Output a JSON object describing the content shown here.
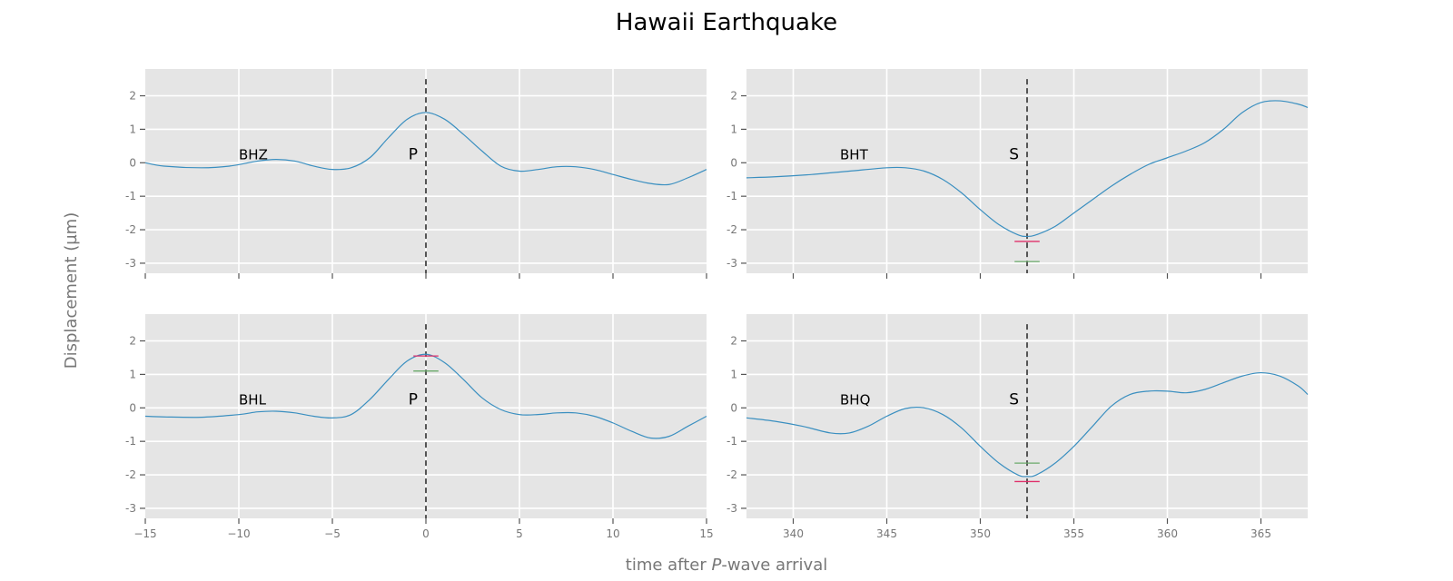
{
  "chart_data": {
    "title": "Hawaii Earthquake",
    "xlabel_pre": "time after ",
    "xlabel_italic": "P",
    "xlabel_post": "-wave arrival",
    "ylabel": "Displacement (µm)",
    "grid": true,
    "colors": {
      "background": "#e5e5e5",
      "grid": "#ffffff",
      "trace": "#3a8fc0",
      "marker": "#555555",
      "red": "#e0306a",
      "green": "#6aaa6a"
    },
    "shared_y": {
      "ylim": [
        -3.3,
        2.8
      ],
      "yticks": [
        2,
        1,
        0,
        -1,
        -2,
        -3
      ],
      "ytick_labels": [
        "2",
        "1",
        "0",
        "-1",
        "-2",
        "-3"
      ]
    },
    "panels": [
      {
        "type": "line",
        "trace": "BHZ",
        "phase": "P",
        "xlim": [
          -15,
          15
        ],
        "xticks": [
          -15,
          -10,
          -5,
          0,
          5,
          10,
          15
        ],
        "xtick_labels": [
          "−15",
          "−10",
          "−5",
          "0",
          "5",
          "10",
          "15"
        ],
        "show_xtick_labels": false,
        "phase_time": 0,
        "red_level": null,
        "green_level": null,
        "x": [
          -15,
          -14,
          -12,
          -10.5,
          -9,
          -8,
          -7,
          -6,
          -5,
          -4,
          -3,
          -2,
          -1,
          0,
          1,
          2,
          3,
          4,
          5,
          6,
          7,
          8,
          9,
          10,
          11,
          12,
          13,
          14,
          15
        ],
        "y": [
          0.0,
          -0.1,
          -0.15,
          -0.1,
          0.05,
          0.1,
          0.05,
          -0.1,
          -0.2,
          -0.15,
          0.15,
          0.75,
          1.3,
          1.5,
          1.3,
          0.85,
          0.35,
          -0.1,
          -0.25,
          -0.2,
          -0.12,
          -0.12,
          -0.2,
          -0.35,
          -0.5,
          -0.62,
          -0.65,
          -0.45,
          -0.2
        ]
      },
      {
        "type": "line",
        "trace": "BHT",
        "phase": "S",
        "xlim": [
          337.5,
          367.5
        ],
        "xticks": [
          340,
          345,
          350,
          355,
          360,
          365
        ],
        "xtick_labels": [
          "340",
          "345",
          "350",
          "355",
          "360",
          "365"
        ],
        "show_xtick_labels": false,
        "phase_time": 352.5,
        "red_level": -2.35,
        "green_level": -2.95,
        "x": [
          337.5,
          339,
          341,
          343,
          345,
          346,
          347,
          348,
          349,
          350,
          351,
          352,
          352.5,
          353,
          354,
          355,
          356,
          357,
          358,
          359,
          360,
          361,
          362,
          363,
          364,
          365,
          366,
          367,
          367.5
        ],
        "y": [
          -0.45,
          -0.42,
          -0.35,
          -0.25,
          -0.15,
          -0.15,
          -0.25,
          -0.5,
          -0.9,
          -1.4,
          -1.85,
          -2.15,
          -2.2,
          -2.15,
          -1.9,
          -1.5,
          -1.1,
          -0.7,
          -0.35,
          -0.05,
          0.15,
          0.35,
          0.6,
          1.0,
          1.5,
          1.8,
          1.85,
          1.75,
          1.65
        ]
      },
      {
        "type": "line",
        "trace": "BHL",
        "phase": "P",
        "xlim": [
          -15,
          15
        ],
        "xticks": [
          -15,
          -10,
          -5,
          0,
          5,
          10,
          15
        ],
        "xtick_labels": [
          "−15",
          "−10",
          "−5",
          "0",
          "5",
          "10",
          "15"
        ],
        "show_xtick_labels": true,
        "phase_time": 0,
        "red_level": 1.55,
        "green_level": 1.1,
        "x": [
          -15,
          -14,
          -12,
          -10,
          -9,
          -8,
          -7,
          -6,
          -5,
          -4,
          -3,
          -2,
          -1,
          0,
          1,
          2,
          3,
          4,
          5,
          6,
          7,
          8,
          9,
          10,
          11,
          12,
          13,
          14,
          15
        ],
        "y": [
          -0.25,
          -0.27,
          -0.28,
          -0.2,
          -0.12,
          -0.1,
          -0.15,
          -0.25,
          -0.3,
          -0.2,
          0.25,
          0.85,
          1.4,
          1.6,
          1.35,
          0.85,
          0.3,
          -0.05,
          -0.2,
          -0.2,
          -0.15,
          -0.15,
          -0.25,
          -0.45,
          -0.7,
          -0.9,
          -0.85,
          -0.55,
          -0.25
        ]
      },
      {
        "type": "line",
        "trace": "BHQ",
        "phase": "S",
        "xlim": [
          337.5,
          367.5
        ],
        "xticks": [
          340,
          345,
          350,
          355,
          360,
          365
        ],
        "xtick_labels": [
          "340",
          "345",
          "350",
          "355",
          "360",
          "365"
        ],
        "show_xtick_labels": true,
        "phase_time": 352.5,
        "red_level": -2.2,
        "green_level": -1.65,
        "x": [
          337.5,
          339,
          340.5,
          342,
          343,
          344,
          345,
          346,
          347,
          348,
          349,
          350,
          351,
          352,
          352.5,
          353,
          354,
          355,
          356,
          357,
          358,
          359,
          360,
          361,
          362,
          363,
          364,
          365,
          366,
          367,
          367.5
        ],
        "y": [
          -0.3,
          -0.4,
          -0.55,
          -0.75,
          -0.75,
          -0.55,
          -0.25,
          -0.02,
          0.0,
          -0.2,
          -0.6,
          -1.15,
          -1.65,
          -2.0,
          -2.05,
          -2.0,
          -1.65,
          -1.15,
          -0.55,
          0.05,
          0.4,
          0.5,
          0.5,
          0.45,
          0.55,
          0.75,
          0.95,
          1.05,
          0.95,
          0.65,
          0.4
        ]
      }
    ]
  }
}
